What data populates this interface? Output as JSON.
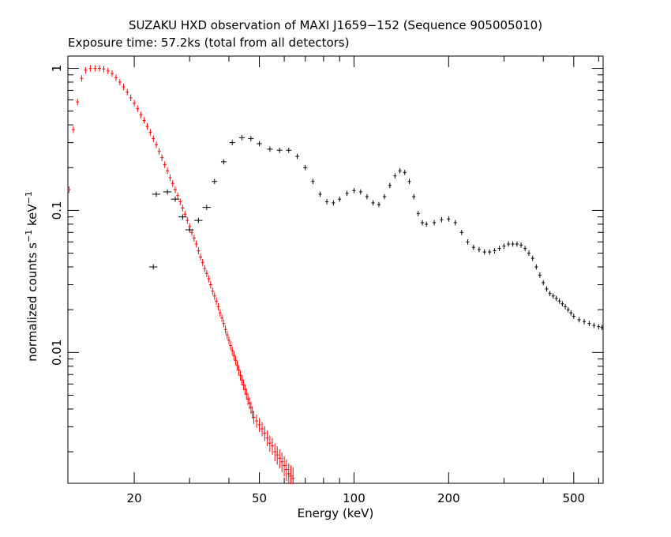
{
  "chart_data": {
    "type": "scatter",
    "title": "SUZAKU HXD observation of MAXI J1659−152 (Sequence 905005010)",
    "subtitle": "Exposure time: 57.2ks (total from all detectors)",
    "xlabel": "Energy (keV)",
    "ylabel": {
      "base": "normalized counts s",
      "sup1": "−1",
      "mid": " keV",
      "sup2": "−1"
    },
    "x_scale": "log",
    "y_scale": "log",
    "xlim": [
      12.3,
      620
    ],
    "ylim": [
      0.0012,
      1.22
    ],
    "x_ticks": [
      {
        "value": 20,
        "label": "20"
      },
      {
        "value": 50,
        "label": "50"
      },
      {
        "value": 100,
        "label": "100"
      },
      {
        "value": 200,
        "label": "200"
      },
      {
        "value": 500,
        "label": "500"
      }
    ],
    "y_ticks": [
      {
        "value": 1,
        "label": "1"
      },
      {
        "value": 0.1,
        "label": "0.1"
      },
      {
        "value": 0.01,
        "label": "0.01"
      }
    ],
    "grid": false,
    "series": [
      {
        "color": "#ff0000",
        "points": [
          [
            12.4,
            0.14,
            0.002
          ],
          [
            12.8,
            0.37,
            0.003
          ],
          [
            13.2,
            0.58,
            0.004
          ],
          [
            13.6,
            0.85,
            0.005
          ],
          [
            14.0,
            0.97,
            0.006
          ],
          [
            14.5,
            1.0,
            0.006
          ],
          [
            15.0,
            1.0,
            0.006
          ],
          [
            15.5,
            1.0,
            0.006
          ],
          [
            16.0,
            0.99,
            0.006
          ],
          [
            16.5,
            0.96,
            0.006
          ],
          [
            17.0,
            0.92,
            0.006
          ],
          [
            17.5,
            0.86,
            0.006
          ],
          [
            18.0,
            0.8,
            0.006
          ],
          [
            18.5,
            0.74,
            0.006
          ],
          [
            19.0,
            0.68,
            0.006
          ],
          [
            19.5,
            0.62,
            0.006
          ],
          [
            20.0,
            0.57,
            0.006
          ],
          [
            20.5,
            0.52,
            0.006
          ],
          [
            21.0,
            0.47,
            0.006
          ],
          [
            21.5,
            0.43,
            0.006
          ],
          [
            22.0,
            0.39,
            0.006
          ],
          [
            22.5,
            0.355,
            0.006
          ],
          [
            23.0,
            0.32,
            0.006
          ],
          [
            23.5,
            0.29,
            0.006
          ],
          [
            24.0,
            0.26,
            0.006
          ],
          [
            24.5,
            0.235,
            0.006
          ],
          [
            25.0,
            0.21,
            0.006
          ],
          [
            25.5,
            0.19,
            0.006
          ],
          [
            26.0,
            0.17,
            0.006
          ],
          [
            26.5,
            0.155,
            0.006
          ],
          [
            27.0,
            0.14,
            0.006
          ],
          [
            27.5,
            0.127,
            0.006
          ],
          [
            28.0,
            0.115,
            0.006
          ],
          [
            28.5,
            0.104,
            0.006
          ],
          [
            29.0,
            0.094,
            0.006
          ],
          [
            29.5,
            0.085,
            0.006
          ],
          [
            30.0,
            0.077,
            0.006
          ],
          [
            30.5,
            0.07,
            0.006
          ],
          [
            31.0,
            0.064,
            0.006
          ],
          [
            31.5,
            0.058,
            0.006
          ],
          [
            32.0,
            0.052,
            0.006
          ],
          [
            32.5,
            0.047,
            0.006
          ],
          [
            33.0,
            0.043,
            0.006
          ],
          [
            33.5,
            0.039,
            0.006
          ],
          [
            34.0,
            0.036,
            0.006
          ],
          [
            34.5,
            0.033,
            0.006
          ],
          [
            35.0,
            0.03,
            0.006
          ],
          [
            35.5,
            0.027,
            0.006
          ],
          [
            36.0,
            0.025,
            0.006
          ],
          [
            36.5,
            0.023,
            0.006
          ],
          [
            37.0,
            0.021,
            0.006
          ],
          [
            37.5,
            0.019,
            0.006
          ],
          [
            38.0,
            0.0175,
            0.006
          ],
          [
            38.5,
            0.016,
            0.006
          ],
          [
            39.0,
            0.0145,
            0.006
          ],
          [
            39.5,
            0.0133,
            0.006
          ],
          [
            40.0,
            0.0122,
            0.006
          ],
          [
            40.5,
            0.0112,
            0.006
          ],
          [
            41.0,
            0.0103,
            0.006
          ],
          [
            41.5,
            0.0095,
            0.006
          ],
          [
            42.0,
            0.0088,
            0.006
          ],
          [
            42.5,
            0.0081,
            0.006
          ],
          [
            43.0,
            0.0075,
            0.006
          ],
          [
            43.5,
            0.0069,
            0.006
          ],
          [
            44.0,
            0.0064,
            0.006
          ],
          [
            44.5,
            0.0059,
            0.006
          ],
          [
            45.0,
            0.0055,
            0.006
          ],
          [
            45.5,
            0.0051,
            0.006
          ],
          [
            46.0,
            0.0047,
            0.006
          ],
          [
            46.5,
            0.0044,
            0.006
          ],
          [
            47.0,
            0.0041,
            0.006
          ],
          [
            47.5,
            0.0038,
            0.006
          ],
          [
            48.0,
            0.0035,
            0.006
          ],
          [
            49.0,
            0.0033,
            0.006
          ],
          [
            50.0,
            0.0031,
            0.006
          ],
          [
            51.0,
            0.0029,
            0.006
          ],
          [
            52.0,
            0.0027,
            0.006
          ],
          [
            53.0,
            0.0025,
            0.006
          ],
          [
            54.0,
            0.0023,
            0.006
          ],
          [
            55.0,
            0.0022,
            0.006
          ],
          [
            56.0,
            0.002,
            0.006
          ],
          [
            57.0,
            0.0019,
            0.006
          ],
          [
            58.0,
            0.0018,
            0.006
          ],
          [
            59.0,
            0.0017,
            0.006
          ],
          [
            60.0,
            0.0016,
            0.006
          ],
          [
            61.0,
            0.0015,
            0.006
          ],
          [
            62.0,
            0.0014,
            0.006
          ],
          [
            63.0,
            0.00135,
            0.006
          ],
          [
            64.0,
            0.0013,
            0.006
          ]
        ]
      },
      {
        "color": "#000000",
        "points": [
          [
            23,
            0.04,
            0.03
          ],
          [
            23.5,
            0.13,
            0.03
          ],
          [
            25.5,
            0.135,
            0.03
          ],
          [
            27,
            0.12,
            0.03
          ],
          [
            28.5,
            0.09,
            0.03
          ],
          [
            30,
            0.073,
            0.03
          ],
          [
            32,
            0.085,
            0.03
          ],
          [
            34,
            0.105,
            0.03
          ],
          [
            36,
            0.16,
            0.02
          ],
          [
            38.5,
            0.22,
            0.02
          ],
          [
            41,
            0.3,
            0.02
          ],
          [
            44,
            0.325,
            0.02
          ],
          [
            47,
            0.32,
            0.02
          ],
          [
            50,
            0.295,
            0.02
          ],
          [
            54,
            0.27,
            0.02
          ],
          [
            58,
            0.265,
            0.02
          ],
          [
            62,
            0.265,
            0.02
          ],
          [
            66,
            0.24,
            0.015
          ],
          [
            70,
            0.2,
            0.015
          ],
          [
            74,
            0.16,
            0.01
          ],
          [
            78,
            0.13,
            0.01
          ],
          [
            82,
            0.115,
            0.008
          ],
          [
            86,
            0.113,
            0.008
          ],
          [
            90,
            0.12,
            0.008
          ],
          [
            95,
            0.132,
            0.008
          ],
          [
            100,
            0.138,
            0.008
          ],
          [
            105,
            0.135,
            0.008
          ],
          [
            110,
            0.125,
            0.008
          ],
          [
            115,
            0.113,
            0.008
          ],
          [
            120,
            0.11,
            0.008
          ],
          [
            125,
            0.125,
            0.008
          ],
          [
            130,
            0.15,
            0.008
          ],
          [
            135,
            0.175,
            0.008
          ],
          [
            140,
            0.19,
            0.008
          ],
          [
            145,
            0.185,
            0.008
          ],
          [
            150,
            0.16,
            0.008
          ],
          [
            155,
            0.125,
            0.008
          ],
          [
            160,
            0.095,
            0.008
          ],
          [
            165,
            0.082,
            0.008
          ],
          [
            170,
            0.08,
            0.008
          ],
          [
            180,
            0.082,
            0.008
          ],
          [
            190,
            0.086,
            0.008
          ],
          [
            200,
            0.087,
            0.008
          ],
          [
            210,
            0.082,
            0.008
          ],
          [
            220,
            0.07,
            0.008
          ],
          [
            230,
            0.06,
            0.008
          ],
          [
            240,
            0.055,
            0.008
          ],
          [
            250,
            0.053,
            0.008
          ],
          [
            260,
            0.051,
            0.008
          ],
          [
            270,
            0.051,
            0.008
          ],
          [
            280,
            0.052,
            0.008
          ],
          [
            290,
            0.054,
            0.008
          ],
          [
            300,
            0.056,
            0.008
          ],
          [
            310,
            0.058,
            0.008
          ],
          [
            320,
            0.058,
            0.008
          ],
          [
            330,
            0.058,
            0.008
          ],
          [
            340,
            0.057,
            0.008
          ],
          [
            350,
            0.054,
            0.008
          ],
          [
            360,
            0.05,
            0.008
          ],
          [
            370,
            0.046,
            0.008
          ],
          [
            380,
            0.04,
            0.008
          ],
          [
            390,
            0.035,
            0.008
          ],
          [
            400,
            0.031,
            0.008
          ],
          [
            410,
            0.028,
            0.008
          ],
          [
            420,
            0.026,
            0.008
          ],
          [
            430,
            0.025,
            0.008
          ],
          [
            440,
            0.024,
            0.008
          ],
          [
            450,
            0.023,
            0.008
          ],
          [
            460,
            0.022,
            0.008
          ],
          [
            470,
            0.021,
            0.008
          ],
          [
            480,
            0.02,
            0.008
          ],
          [
            490,
            0.019,
            0.008
          ],
          [
            500,
            0.018,
            0.008
          ],
          [
            520,
            0.017,
            0.008
          ],
          [
            540,
            0.0165,
            0.008
          ],
          [
            560,
            0.016,
            0.008
          ],
          [
            580,
            0.0155,
            0.008
          ],
          [
            600,
            0.0152,
            0.008
          ],
          [
            615,
            0.015,
            0.008
          ]
        ]
      }
    ]
  }
}
